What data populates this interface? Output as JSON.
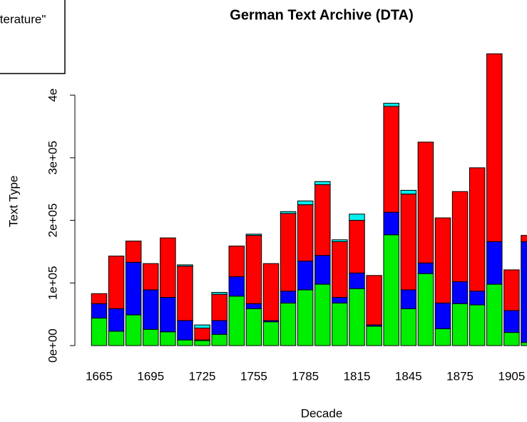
{
  "chart_data": {
    "type": "stacked_bar",
    "title": "German Text Archive (DTA)",
    "x_label": "Decade",
    "y_label": "Text Type",
    "legend_text": "iterature\"",
    "categories": [
      "1665",
      null,
      null,
      "1695",
      null,
      null,
      "1725",
      null,
      null,
      "1755",
      null,
      null,
      "1785",
      null,
      null,
      "1815",
      null,
      null,
      "1845",
      null,
      null,
      "1875",
      null,
      null,
      "1905",
      null
    ],
    "ylim": [
      0,
      480000
    ],
    "yticks": [
      {
        "value": 0,
        "label": "0e+00"
      },
      {
        "value": 100000,
        "label": "1e+05"
      },
      {
        "value": 200000,
        "label": "2e+05"
      },
      {
        "value": 300000,
        "label": "3e+05"
      },
      {
        "value": 400000,
        "label": "4e"
      }
    ],
    "series": [
      {
        "color": "#00ee00",
        "values": [
          44000,
          23000,
          49000,
          26000,
          22000,
          9000,
          8000,
          18000,
          79000,
          59000,
          38000,
          68000,
          89000,
          98000,
          68000,
          91000,
          31000,
          177000,
          59000,
          115000,
          27000,
          67000,
          65000,
          98000,
          21000,
          5000
        ]
      },
      {
        "color": "#0000ff",
        "values": [
          23000,
          36000,
          84000,
          63000,
          55000,
          31000,
          1000,
          22000,
          31000,
          8000,
          2000,
          19000,
          46000,
          46000,
          9000,
          25000,
          2000,
          36000,
          30000,
          17000,
          41000,
          35000,
          22000,
          68000,
          35000,
          161000
        ]
      },
      {
        "color": "#ff0000",
        "values": [
          16000,
          84000,
          34000,
          42000,
          95000,
          87000,
          19000,
          42000,
          49000,
          109000,
          91000,
          124000,
          90000,
          113000,
          89000,
          84000,
          79000,
          169000,
          153000,
          193000,
          136000,
          144000,
          197000,
          300000,
          65000,
          10000
        ]
      },
      {
        "color": "#00eeee",
        "values": [
          0,
          0,
          0,
          0,
          0,
          2000,
          5000,
          3000,
          0,
          2000,
          0,
          3000,
          6000,
          5000,
          3000,
          10000,
          0,
          5000,
          6000,
          0,
          0,
          0,
          0,
          0,
          0,
          0
        ]
      }
    ]
  }
}
